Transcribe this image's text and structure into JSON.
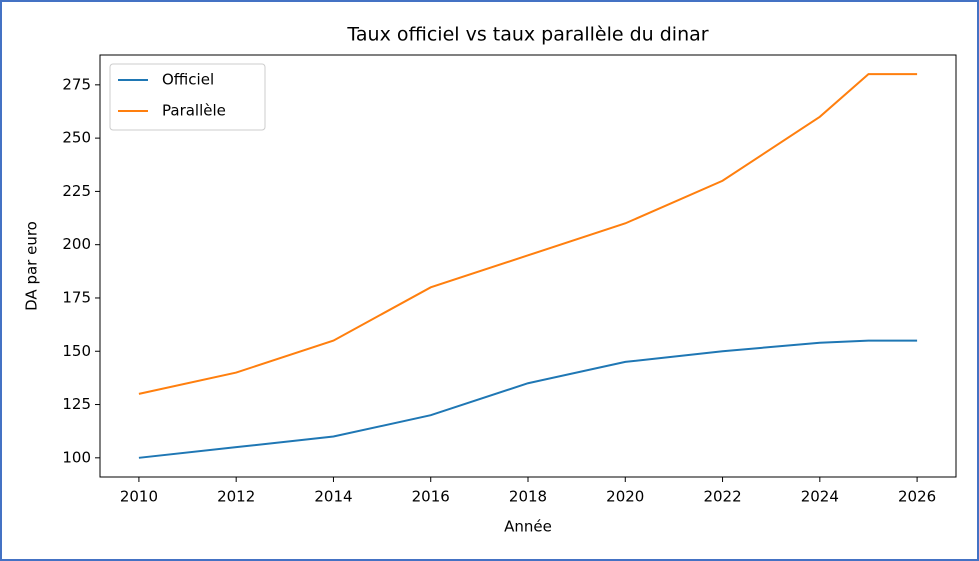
{
  "chart_data": {
    "type": "line",
    "title": "Taux officiel vs taux parallèle du dinar",
    "xlabel": "Année",
    "ylabel": "DA par euro",
    "x": [
      2010,
      2012,
      2014,
      2016,
      2018,
      2020,
      2022,
      2024,
      2025,
      2026
    ],
    "series": [
      {
        "name": "Officiel",
        "color": "#1f77b4",
        "values": [
          100,
          105,
          110,
          120,
          135,
          145,
          150,
          154,
          155,
          155
        ]
      },
      {
        "name": "Parallèle",
        "color": "#ff7f0e",
        "values": [
          130,
          140,
          155,
          180,
          195,
          210,
          230,
          260,
          280,
          280
        ]
      }
    ],
    "xlim": [
      2009.2,
      2026.8
    ],
    "xticks": [
      2010,
      2012,
      2014,
      2016,
      2018,
      2020,
      2022,
      2024,
      2026
    ],
    "ylim": [
      91,
      289
    ],
    "yticks": [
      100,
      125,
      150,
      175,
      200,
      225,
      250,
      275
    ],
    "legend": "upper left"
  }
}
